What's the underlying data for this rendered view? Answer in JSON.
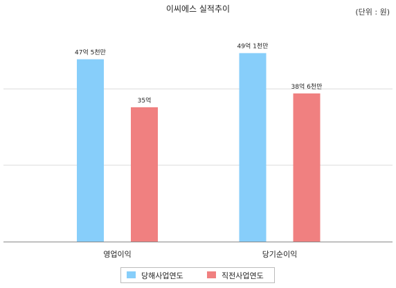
{
  "chart_data": {
    "type": "bar",
    "title": "이씨에스 실적추이",
    "unit_note": "(단위 : 원)",
    "categories": [
      "영업이익",
      "당기순이익"
    ],
    "ylim": [
      0,
      55
    ],
    "grid": true,
    "legend_position": "bottom-center",
    "series": [
      {
        "name": "당해사업연도",
        "color": "#87CEFA",
        "values": [
          47.5,
          49.1
        ],
        "labels": [
          "47억 5천만",
          "49억 1천만"
        ]
      },
      {
        "name": "직전사업연도",
        "color": "#F08080",
        "values": [
          35,
          38.6
        ],
        "labels": [
          "35억",
          "38억 6천만"
        ]
      }
    ]
  }
}
